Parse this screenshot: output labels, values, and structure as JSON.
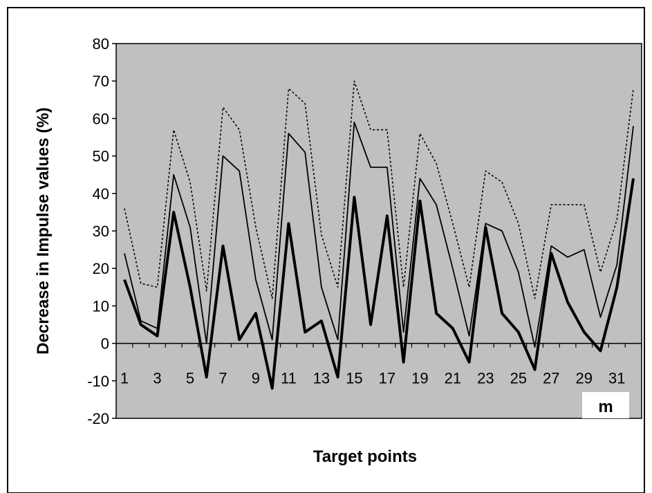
{
  "chart_data": {
    "type": "line",
    "title": "",
    "xlabel": "Target points",
    "ylabel": "Decrease in Impulse values (%)",
    "annotation": "m",
    "ylim": [
      -20,
      80
    ],
    "yticks": [
      -20,
      -10,
      0,
      10,
      20,
      30,
      40,
      50,
      60,
      70,
      80
    ],
    "x": [
      1,
      2,
      3,
      4,
      5,
      6,
      7,
      8,
      9,
      10,
      11,
      12,
      13,
      14,
      15,
      16,
      17,
      18,
      19,
      20,
      21,
      22,
      23,
      24,
      25,
      26,
      27,
      28,
      29,
      30,
      31,
      32
    ],
    "xtick_labels": [
      "1",
      "3",
      "5",
      "7",
      "9",
      "11",
      "13",
      "15",
      "17",
      "19",
      "21",
      "23",
      "25",
      "27",
      "29",
      "31"
    ],
    "xtick_values": [
      1,
      3,
      5,
      7,
      9,
      11,
      13,
      15,
      17,
      19,
      21,
      23,
      25,
      27,
      29,
      31
    ],
    "grid": false,
    "background": "#c0c0c0",
    "series": [
      {
        "style": "dotted",
        "color": "#000000",
        "values": [
          36,
          16,
          15,
          57,
          43,
          14,
          63,
          57,
          31,
          12,
          68,
          64,
          29,
          15,
          70,
          57,
          57,
          15,
          56,
          48,
          32,
          15,
          46,
          43,
          32,
          12,
          37,
          37,
          37,
          19,
          33,
          68
        ]
      },
      {
        "style": "thin",
        "color": "#000000",
        "values": [
          24,
          6,
          4,
          45,
          31,
          0,
          50,
          46,
          17,
          1,
          56,
          51,
          15,
          1,
          59,
          47,
          47,
          3,
          44,
          37,
          20,
          2,
          32,
          30,
          19,
          -1,
          26,
          23,
          25,
          7,
          21,
          58
        ]
      },
      {
        "style": "thick",
        "color": "#000000",
        "values": [
          17,
          5,
          2,
          35,
          15,
          -9,
          26,
          1,
          8,
          -12,
          32,
          3,
          6,
          -9,
          39,
          5,
          34,
          -5,
          38,
          8,
          4,
          -5,
          31,
          8,
          3,
          -7,
          24,
          11,
          3,
          -2,
          15,
          44
        ]
      }
    ]
  }
}
